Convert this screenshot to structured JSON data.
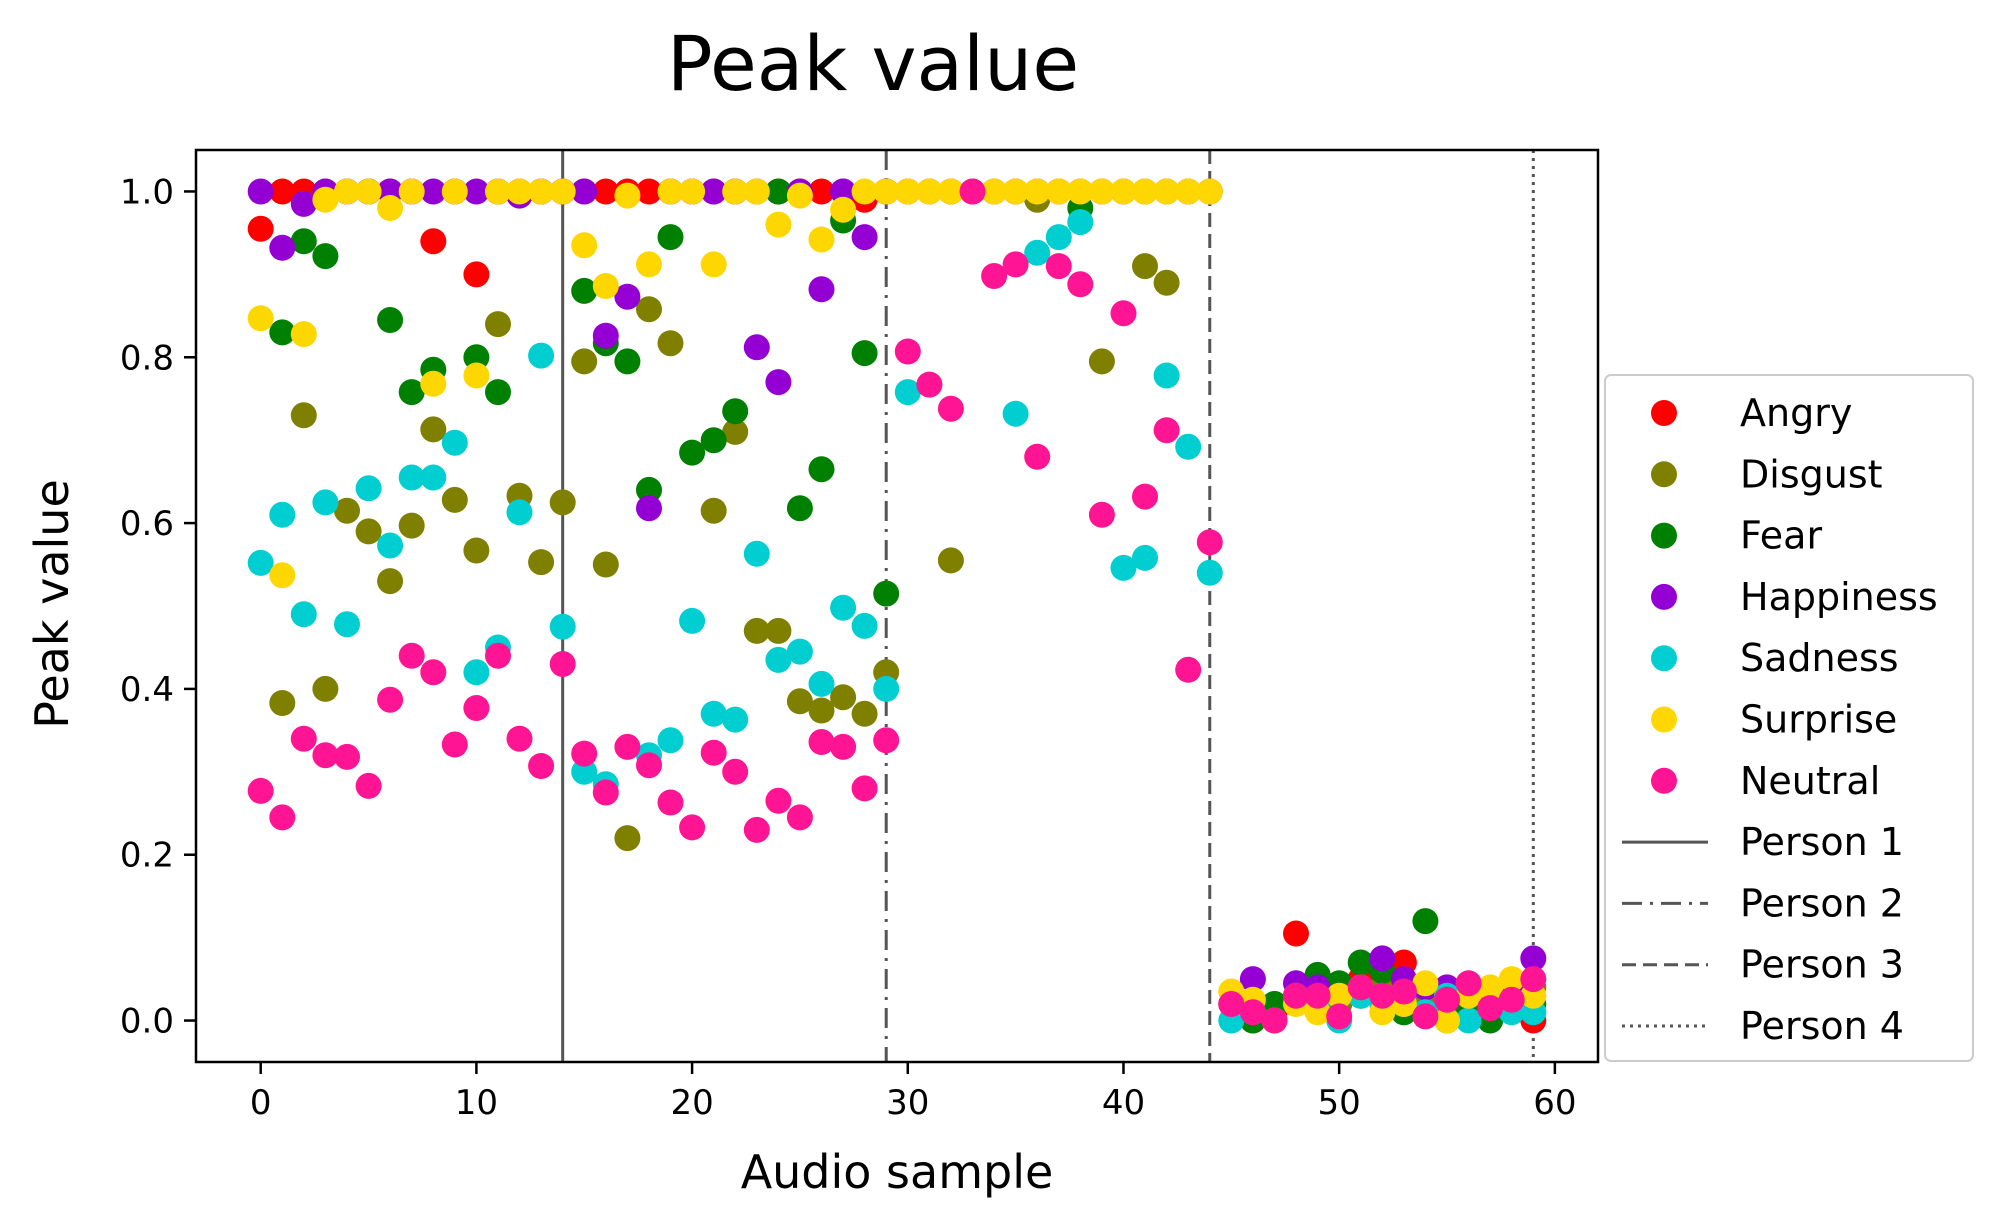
{
  "chart_data": {
    "type": "scatter",
    "title": "Peak value",
    "xlabel": "Audio sample",
    "ylabel": "Peak value",
    "xlim": [
      -3,
      62
    ],
    "ylim": [
      -0.05,
      1.05
    ],
    "xticks": [
      0,
      10,
      20,
      30,
      40,
      50,
      60
    ],
    "yticks": [
      0.0,
      0.2,
      0.4,
      0.6,
      0.8,
      1.0
    ],
    "xtick_labels": [
      "0",
      "10",
      "20",
      "30",
      "40",
      "50",
      "60"
    ],
    "ytick_labels": [
      "0.0",
      "0.2",
      "0.4",
      "0.6",
      "0.8",
      "1.0"
    ],
    "grid": false,
    "legend_position": "outside-right",
    "series": [
      {
        "name": "Angry",
        "color": "#ff0000",
        "x": [
          0,
          1,
          2,
          3,
          4,
          5,
          6,
          7,
          8,
          9,
          10,
          11,
          12,
          13,
          14,
          15,
          16,
          17,
          18,
          19,
          20,
          21,
          22,
          23,
          24,
          25,
          26,
          27,
          28,
          29,
          30,
          31,
          32,
          33,
          34,
          35,
          36,
          37,
          38,
          39,
          40,
          41,
          42,
          43,
          44,
          45,
          46,
          47,
          48,
          49,
          50,
          51,
          52,
          53,
          54,
          55,
          56,
          57,
          58,
          59
        ],
        "y": [
          0.955,
          1.0,
          1.0,
          1.0,
          1.0,
          1.0,
          1.0,
          1.0,
          0.94,
          1.0,
          0.9,
          1.0,
          1.0,
          1.0,
          1.0,
          1.0,
          1.0,
          1.0,
          1.0,
          1.0,
          1.0,
          1.0,
          1.0,
          1.0,
          1.0,
          1.0,
          1.0,
          1.0,
          0.99,
          1.0,
          1.0,
          1.0,
          1.0,
          1.0,
          1.0,
          1.0,
          1.0,
          1.0,
          1.0,
          1.0,
          1.0,
          1.0,
          1.0,
          1.0,
          1.0,
          0.02,
          0.01,
          0.01,
          0.105,
          0.03,
          0.02,
          0.05,
          0.06,
          0.07,
          0.03,
          0.02,
          0.03,
          0.01,
          0.03,
          0.0
        ]
      },
      {
        "name": "Disgust",
        "color": "#808000",
        "x": [
          1,
          2,
          3,
          4,
          5,
          6,
          7,
          8,
          9,
          10,
          11,
          12,
          13,
          14,
          15,
          16,
          17,
          18,
          19,
          21,
          22,
          23,
          24,
          25,
          26,
          27,
          28,
          29,
          32,
          36,
          39,
          41,
          42,
          46,
          47,
          48,
          49,
          50,
          51,
          52,
          53,
          54,
          55,
          56,
          57,
          58,
          59
        ],
        "y": [
          0.383,
          0.73,
          0.4,
          0.615,
          0.59,
          0.53,
          0.597,
          0.713,
          0.628,
          0.567,
          0.84,
          0.633,
          0.553,
          0.625,
          0.795,
          0.55,
          0.22,
          0.858,
          0.817,
          0.615,
          0.71,
          0.47,
          0.47,
          0.385,
          0.374,
          0.39,
          0.37,
          0.42,
          0.555,
          0.99,
          0.795,
          0.91,
          0.89,
          0.0,
          0.02,
          0.03,
          0.04,
          0.02,
          0.03,
          0.04,
          0.01,
          0.02,
          0.0,
          0.02,
          0.03,
          0.02,
          0.04
        ]
      },
      {
        "name": "Fear",
        "color": "#008000",
        "x": [
          1,
          2,
          3,
          5,
          6,
          7,
          8,
          10,
          11,
          15,
          16,
          17,
          18,
          19,
          20,
          21,
          22,
          24,
          25,
          26,
          27,
          28,
          29,
          38,
          45,
          46,
          47,
          48,
          49,
          50,
          51,
          52,
          53,
          54,
          55,
          56,
          57,
          58,
          59
        ],
        "y": [
          0.83,
          0.94,
          0.922,
          1.0,
          0.845,
          0.758,
          0.785,
          0.8,
          0.758,
          0.88,
          0.817,
          0.795,
          0.64,
          0.945,
          0.685,
          0.7,
          0.735,
          1.0,
          0.618,
          0.665,
          0.965,
          0.805,
          0.515,
          0.98,
          0.02,
          0.0,
          0.02,
          0.03,
          0.055,
          0.045,
          0.07,
          0.06,
          0.01,
          0.12,
          0.03,
          0.01,
          0.0,
          0.03,
          0.02
        ]
      },
      {
        "name": "Happiness",
        "color": "#9400d3",
        "x": [
          0,
          1,
          2,
          3,
          4,
          5,
          6,
          7,
          8,
          9,
          10,
          11,
          12,
          13,
          14,
          15,
          16,
          17,
          18,
          19,
          20,
          21,
          22,
          23,
          24,
          25,
          26,
          27,
          28,
          29,
          46,
          48,
          49,
          50,
          52,
          53,
          54,
          55,
          58,
          59
        ],
        "y": [
          1.0,
          0.932,
          0.985,
          1.0,
          1.0,
          1.0,
          1.0,
          1.0,
          1.0,
          1.0,
          1.0,
          1.0,
          0.995,
          1.0,
          1.0,
          1.0,
          0.826,
          0.873,
          0.618,
          1.0,
          1.0,
          1.0,
          1.0,
          0.812,
          0.77,
          1.0,
          0.882,
          1.0,
          0.945,
          1.0,
          0.05,
          0.045,
          0.04,
          0.03,
          0.075,
          0.05,
          0.04,
          0.04,
          0.04,
          0.075
        ]
      },
      {
        "name": "Sadness",
        "color": "#00ced1",
        "x": [
          0,
          1,
          2,
          3,
          4,
          5,
          6,
          7,
          8,
          9,
          10,
          11,
          12,
          13,
          14,
          15,
          16,
          18,
          19,
          20,
          21,
          22,
          23,
          24,
          25,
          26,
          27,
          28,
          29,
          30,
          35,
          36,
          37,
          38,
          40,
          41,
          42,
          43,
          44,
          45,
          46,
          47,
          48,
          49,
          50,
          51,
          52,
          53,
          54,
          55,
          56,
          57,
          58,
          59
        ],
        "y": [
          0.552,
          0.61,
          0.49,
          0.625,
          0.478,
          0.642,
          0.573,
          0.655,
          0.655,
          0.697,
          0.42,
          0.45,
          0.613,
          0.802,
          0.475,
          0.3,
          0.285,
          0.32,
          0.338,
          0.482,
          0.37,
          0.363,
          0.563,
          0.435,
          0.445,
          0.406,
          0.498,
          0.476,
          0.4,
          0.758,
          0.732,
          0.926,
          0.945,
          0.963,
          0.546,
          0.558,
          0.778,
          0.692,
          0.54,
          0.0,
          0.01,
          0.0,
          0.03,
          0.02,
          0.0,
          0.03,
          0.02,
          0.02,
          0.01,
          0.03,
          0.0,
          0.02,
          0.01,
          0.01
        ]
      },
      {
        "name": "Surprise",
        "color": "#ffd700",
        "x": [
          0,
          1,
          2,
          3,
          4,
          5,
          6,
          7,
          8,
          9,
          10,
          11,
          12,
          13,
          14,
          15,
          16,
          17,
          18,
          19,
          20,
          21,
          22,
          23,
          24,
          25,
          26,
          27,
          28,
          29,
          30,
          31,
          32,
          34,
          35,
          36,
          37,
          38,
          39,
          40,
          41,
          42,
          43,
          44,
          45,
          46,
          47,
          48,
          49,
          50,
          51,
          52,
          53,
          54,
          55,
          56,
          57,
          58,
          59
        ],
        "y": [
          0.847,
          0.537,
          0.828,
          0.99,
          1.0,
          1.0,
          0.98,
          1.0,
          0.768,
          1.0,
          0.778,
          1.0,
          1.0,
          1.0,
          1.0,
          0.935,
          0.886,
          0.995,
          0.912,
          1.0,
          1.0,
          0.912,
          1.0,
          1.0,
          0.96,
          0.995,
          0.942,
          0.978,
          1.0,
          1.0,
          1.0,
          1.0,
          1.0,
          1.0,
          1.0,
          1.0,
          1.0,
          1.0,
          1.0,
          1.0,
          1.0,
          1.0,
          1.0,
          1.0,
          0.035,
          0.025,
          0.0,
          0.02,
          0.01,
          0.03,
          0.04,
          0.01,
          0.02,
          0.045,
          0.0,
          0.03,
          0.04,
          0.05,
          0.03
        ]
      },
      {
        "name": "Neutral",
        "color": "#ff1493",
        "x": [
          0,
          1,
          2,
          3,
          4,
          5,
          6,
          7,
          8,
          9,
          10,
          11,
          12,
          13,
          14,
          15,
          16,
          17,
          18,
          19,
          20,
          21,
          22,
          23,
          24,
          25,
          26,
          27,
          28,
          29,
          30,
          31,
          32,
          33,
          34,
          35,
          36,
          37,
          38,
          39,
          40,
          41,
          42,
          43,
          44,
          45,
          46,
          47,
          48,
          49,
          50,
          51,
          52,
          53,
          54,
          55,
          56,
          57,
          58,
          59
        ],
        "y": [
          0.277,
          0.245,
          0.34,
          0.32,
          0.318,
          0.283,
          0.387,
          0.44,
          0.42,
          0.333,
          0.377,
          0.44,
          0.34,
          0.307,
          0.43,
          0.322,
          0.275,
          0.33,
          0.308,
          0.263,
          0.233,
          0.323,
          0.3,
          0.23,
          0.265,
          0.245,
          0.336,
          0.33,
          0.28,
          0.338,
          0.807,
          0.767,
          0.738,
          1.0,
          0.898,
          0.912,
          0.68,
          0.91,
          0.888,
          0.61,
          0.853,
          0.632,
          0.712,
          0.423,
          0.577,
          0.02,
          0.01,
          0.0,
          0.03,
          0.03,
          0.005,
          0.04,
          0.03,
          0.035,
          0.005,
          0.025,
          0.045,
          0.015,
          0.025,
          0.05
        ]
      }
    ],
    "reference_lines": [
      {
        "name": "Person 1",
        "x": 14,
        "style": "solid",
        "color": "#555555"
      },
      {
        "name": "Person 2",
        "x": 29,
        "style": "dashdot",
        "color": "#555555"
      },
      {
        "name": "Person 3",
        "x": 44,
        "style": "dashed",
        "color": "#555555"
      },
      {
        "name": "Person 4",
        "x": 59,
        "style": "dotted",
        "color": "#555555"
      }
    ]
  }
}
